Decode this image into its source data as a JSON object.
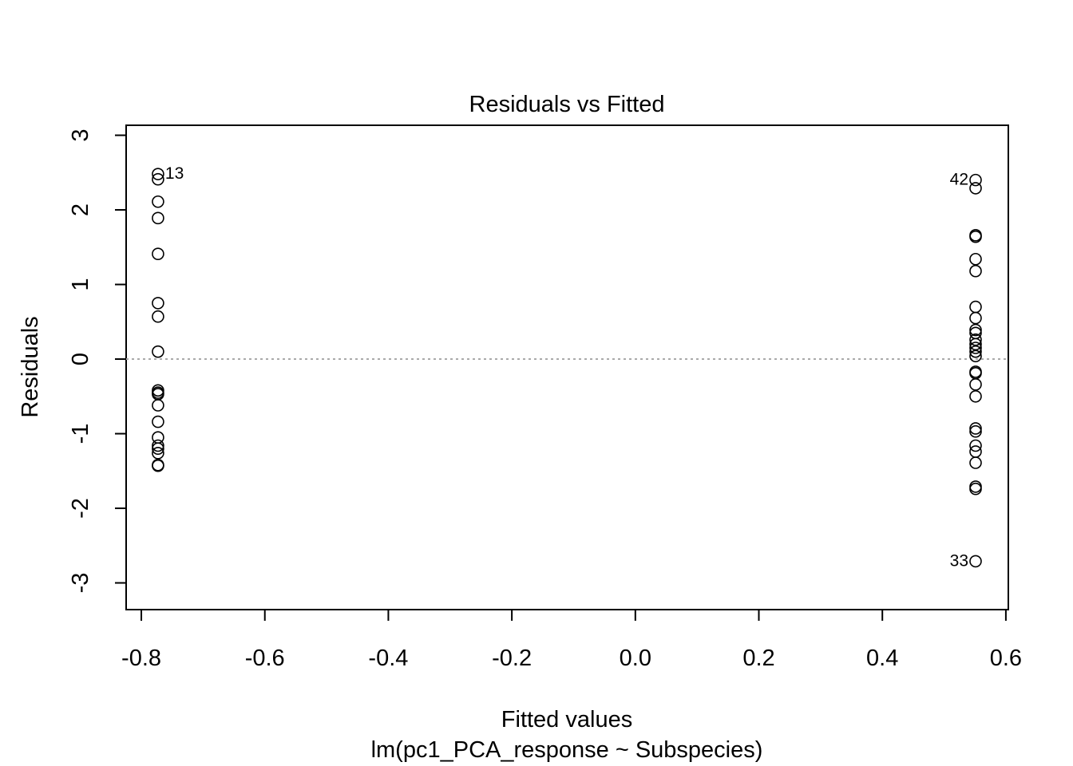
{
  "chart_data": {
    "type": "scatter",
    "title": "Residuals vs Fitted",
    "x_label": "Fitted values",
    "subtitle": "lm(pc1_PCA_response ~ Subspecies)",
    "y_label": "Residuals",
    "x": [
      -0.773,
      -0.773,
      -0.773,
      -0.773,
      -0.773,
      -0.773,
      -0.773,
      -0.773,
      -0.773,
      -0.773,
      -0.773,
      -0.773,
      -0.773,
      -0.773,
      -0.773,
      -0.773,
      -0.773,
      -0.773,
      -0.773,
      0.551,
      0.551,
      0.551,
      0.551,
      0.551,
      0.551,
      0.551,
      0.551,
      0.551,
      0.551,
      0.551,
      0.551,
      0.551,
      0.551,
      0.551,
      0.551,
      0.551,
      0.551,
      0.551,
      0.551,
      0.551,
      0.551,
      0.551,
      0.551,
      0.551,
      0.551,
      0.551
    ],
    "y": [
      2.48,
      2.41,
      2.11,
      1.89,
      1.41,
      0.75,
      0.57,
      0.1,
      -0.42,
      -0.45,
      -0.47,
      -0.62,
      -0.84,
      -1.05,
      -1.16,
      -1.2,
      -1.26,
      -1.42,
      -1.43,
      2.4,
      2.29,
      1.66,
      1.64,
      1.34,
      1.18,
      0.7,
      0.55,
      0.39,
      0.35,
      0.26,
      0.2,
      0.15,
      0.1,
      0.04,
      -0.17,
      -0.19,
      -0.34,
      -0.5,
      -0.93,
      -0.97,
      -1.16,
      -1.24,
      -1.39,
      -1.71,
      -1.74,
      -2.71
    ],
    "point_labels": [
      "13",
      null,
      null,
      null,
      null,
      null,
      null,
      null,
      null,
      null,
      null,
      null,
      null,
      null,
      null,
      null,
      null,
      null,
      null,
      "42",
      null,
      null,
      null,
      null,
      null,
      null,
      null,
      null,
      null,
      null,
      null,
      null,
      null,
      null,
      null,
      null,
      null,
      null,
      null,
      null,
      null,
      null,
      null,
      null,
      null,
      "33"
    ],
    "color": "#000000",
    "reference_line": 0,
    "xlim": [
      -0.8246,
      0.604
    ],
    "ylim": [
      -3.358,
      3.134
    ],
    "xticks": [
      -0.8,
      -0.6,
      -0.4,
      -0.2,
      {
        "value": 0,
        "label": "0.0"
      },
      0.2,
      0.4,
      0.6
    ],
    "yticks": [
      -3,
      -2,
      -1,
      0,
      1,
      2,
      3
    ]
  }
}
